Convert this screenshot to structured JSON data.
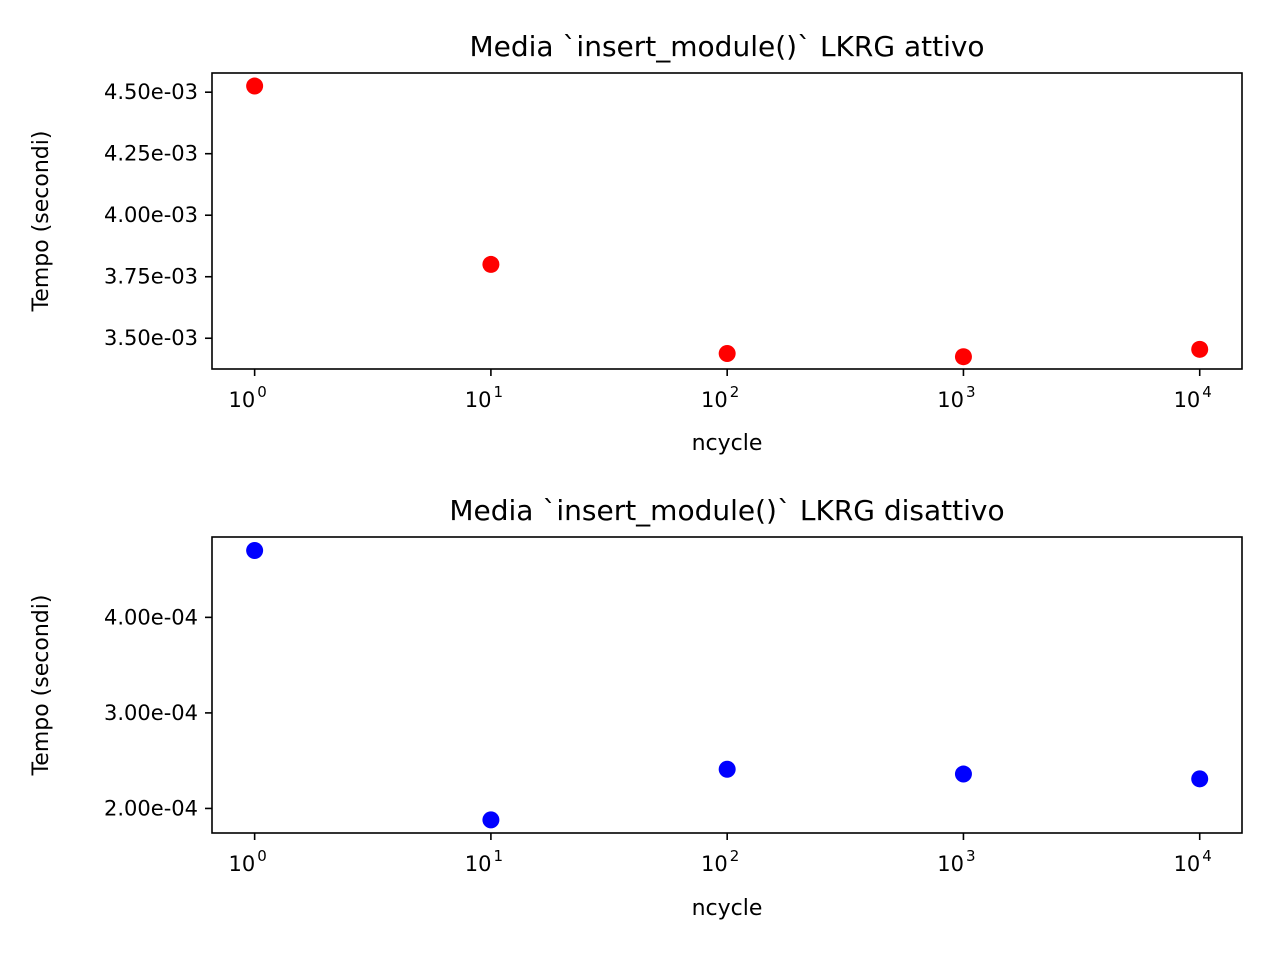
{
  "chart_data": [
    {
      "type": "scatter",
      "title": "Media `insert_module()` LKRG attivo",
      "xlabel": "ncycle",
      "ylabel": "Tempo (secondi)",
      "xscale": "log",
      "xlim": [
        0.66,
        15100
      ],
      "ylim": [
        0.003375,
        0.004578
      ],
      "color": "#ff0000",
      "x": [
        1,
        10,
        100,
        1000,
        10000
      ],
      "y": [
        0.004525,
        0.0038,
        0.003438,
        0.003425,
        0.003455
      ],
      "x_ticks": [
        {
          "value": 1,
          "base": "10",
          "exp": "0"
        },
        {
          "value": 10,
          "base": "10",
          "exp": "1"
        },
        {
          "value": 100,
          "base": "10",
          "exp": "2"
        },
        {
          "value": 1000,
          "base": "10",
          "exp": "3"
        },
        {
          "value": 10000,
          "base": "10",
          "exp": "4"
        }
      ],
      "y_ticks": [
        {
          "value": 0.0035,
          "label": "3.50e-03"
        },
        {
          "value": 0.00375,
          "label": "3.75e-03"
        },
        {
          "value": 0.004,
          "label": "4.00e-03"
        },
        {
          "value": 0.00425,
          "label": "4.25e-03"
        },
        {
          "value": 0.0045,
          "label": "4.50e-03"
        }
      ],
      "grid": false
    },
    {
      "type": "scatter",
      "title": "Media `insert_module()` LKRG disattivo",
      "xlabel": "ncycle",
      "ylabel": "Tempo (secondi)",
      "xscale": "log",
      "xlim": [
        0.66,
        15100
      ],
      "ylim": [
        0.0001743,
        0.0004841
      ],
      "color": "#0000ff",
      "x": [
        1,
        10,
        100,
        1000,
        10000
      ],
      "y": [
        0.00047,
        0.000188,
        0.000241,
        0.000236,
        0.000231
      ],
      "x_ticks": [
        {
          "value": 1,
          "base": "10",
          "exp": "0"
        },
        {
          "value": 10,
          "base": "10",
          "exp": "1"
        },
        {
          "value": 100,
          "base": "10",
          "exp": "2"
        },
        {
          "value": 1000,
          "base": "10",
          "exp": "3"
        },
        {
          "value": 10000,
          "base": "10",
          "exp": "4"
        }
      ],
      "y_ticks": [
        {
          "value": 0.0002,
          "label": "2.00e-04"
        },
        {
          "value": 0.0003,
          "label": "3.00e-04"
        },
        {
          "value": 0.0004,
          "label": "4.00e-04"
        }
      ],
      "grid": false
    }
  ]
}
